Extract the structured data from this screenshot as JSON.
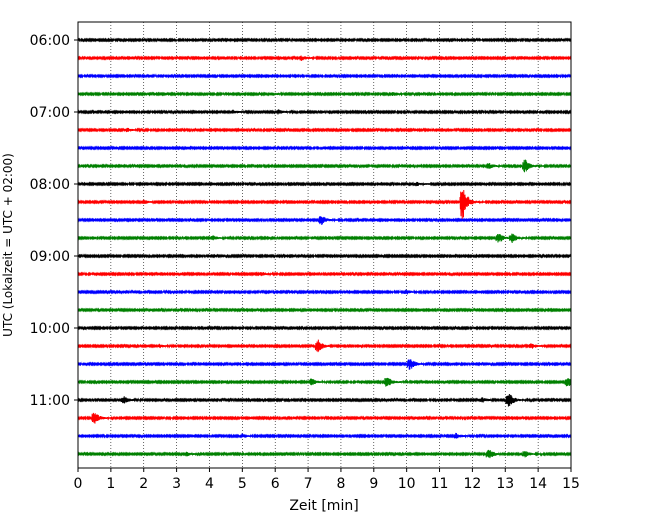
{
  "chart_data": {
    "type": "line",
    "title": "",
    "xlabel": "Zeit  [min]",
    "ylabel": "UTC (Lokalzeit = UTC + 02:00)",
    "xlim": [
      0,
      15
    ],
    "x_ticks": [
      "0",
      "1",
      "2",
      "3",
      "4",
      "5",
      "6",
      "7",
      "8",
      "9",
      "10",
      "11",
      "12",
      "13",
      "14",
      "15"
    ],
    "y_ticks": [
      "06:00",
      "07:00",
      "08:00",
      "09:00",
      "10:00",
      "11:00"
    ],
    "grid": "vertical dotted at each minute",
    "trace_colors_cycle": [
      "#000000",
      "#ff0000",
      "#0000ff",
      "#008000"
    ],
    "traces_per_hour": 4,
    "trace_interval_min": 15,
    "series": [
      {
        "start": "06:00",
        "color": "#000000",
        "events": []
      },
      {
        "start": "06:15",
        "color": "#ff0000",
        "events": [
          {
            "t": 6.8,
            "amp": 0.4
          }
        ]
      },
      {
        "start": "06:30",
        "color": "#0000ff",
        "events": []
      },
      {
        "start": "06:45",
        "color": "#008000",
        "events": [
          {
            "t": 5.9,
            "amp": 0.25
          },
          {
            "t": 9.6,
            "amp": 0.3
          }
        ]
      },
      {
        "start": "07:00",
        "color": "#000000",
        "events": [
          {
            "t": 4.7,
            "amp": 0.35
          },
          {
            "t": 6.1,
            "amp": 0.35
          }
        ]
      },
      {
        "start": "07:15",
        "color": "#ff0000",
        "events": [
          {
            "t": 1.5,
            "amp": 0.3
          }
        ]
      },
      {
        "start": "07:30",
        "color": "#0000ff",
        "events": []
      },
      {
        "start": "07:45",
        "color": "#008000",
        "events": [
          {
            "t": 12.5,
            "amp": 0.5
          },
          {
            "t": 13.6,
            "amp": 1.2
          }
        ]
      },
      {
        "start": "08:00",
        "color": "#000000",
        "events": [
          {
            "t": 10.3,
            "amp": 0.3
          }
        ]
      },
      {
        "start": "08:15",
        "color": "#ff0000",
        "events": [
          {
            "t": 2.0,
            "amp": 0.35
          },
          {
            "t": 11.7,
            "amp": 3.5
          }
        ]
      },
      {
        "start": "08:30",
        "color": "#0000ff",
        "events": [
          {
            "t": 7.4,
            "amp": 0.85
          }
        ]
      },
      {
        "start": "08:45",
        "color": "#008000",
        "events": [
          {
            "t": 4.1,
            "amp": 0.35
          },
          {
            "t": 12.8,
            "amp": 0.9
          },
          {
            "t": 13.2,
            "amp": 0.8
          }
        ]
      },
      {
        "start": "09:00",
        "color": "#000000",
        "events": []
      },
      {
        "start": "09:15",
        "color": "#ff0000",
        "events": [
          {
            "t": 5.6,
            "amp": 0.3
          }
        ]
      },
      {
        "start": "09:30",
        "color": "#0000ff",
        "events": [
          {
            "t": 10.0,
            "amp": 0.35
          }
        ]
      },
      {
        "start": "09:45",
        "color": "#008000",
        "events": []
      },
      {
        "start": "10:00",
        "color": "#000000",
        "events": []
      },
      {
        "start": "10:15",
        "color": "#ff0000",
        "events": [
          {
            "t": 2.5,
            "amp": 0.35
          },
          {
            "t": 7.3,
            "amp": 1.1
          },
          {
            "t": 13.8,
            "amp": 0.45
          }
        ]
      },
      {
        "start": "10:30",
        "color": "#0000ff",
        "events": [
          {
            "t": 10.1,
            "amp": 1.1
          }
        ]
      },
      {
        "start": "10:45",
        "color": "#008000",
        "events": [
          {
            "t": 7.1,
            "amp": 0.6
          },
          {
            "t": 9.4,
            "amp": 1.0
          },
          {
            "t": 14.9,
            "amp": 0.9
          }
        ]
      },
      {
        "start": "11:00",
        "color": "#000000",
        "events": [
          {
            "t": 1.4,
            "amp": 0.6
          },
          {
            "t": 12.3,
            "amp": 0.4
          },
          {
            "t": 13.1,
            "amp": 1.4
          }
        ]
      },
      {
        "start": "11:15",
        "color": "#ff0000",
        "events": [
          {
            "t": 0.5,
            "amp": 1.1
          }
        ]
      },
      {
        "start": "11:30",
        "color": "#0000ff",
        "events": [
          {
            "t": 5.0,
            "amp": 0.35
          },
          {
            "t": 11.5,
            "amp": 0.5
          }
        ]
      },
      {
        "start": "11:45",
        "color": "#008000",
        "events": [
          {
            "t": 3.3,
            "amp": 0.35
          },
          {
            "t": 12.5,
            "amp": 1.0
          },
          {
            "t": 13.6,
            "amp": 0.6
          }
        ]
      }
    ]
  }
}
